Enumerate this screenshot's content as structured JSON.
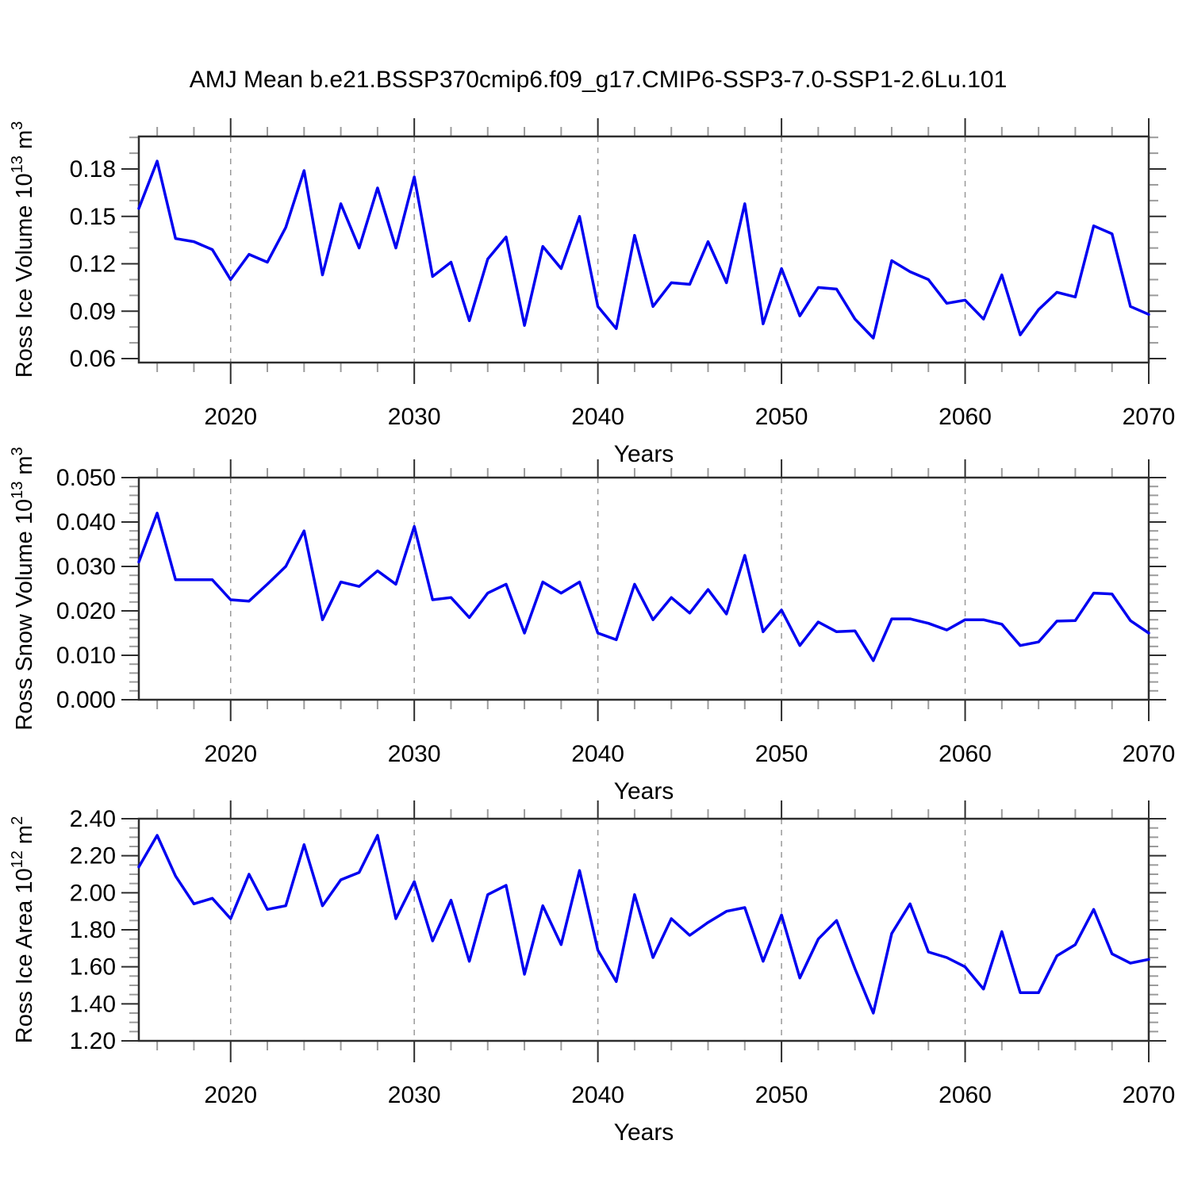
{
  "title": "AMJ Mean b.e21.BSSP370cmip6.f09_g17.CMIP6-SSP3-7.0-SSP1-2.6Lu.101",
  "colors": {
    "line": "#0000f0",
    "frame": "#2e2e2e",
    "minor_tick": "#9b9b9b",
    "gridline": "#999999",
    "text": "#000000"
  },
  "chart_data": {
    "type": "line",
    "suptitle": "AMJ Mean b.e21.BSSP370cmip6.f09_g17.CMIP6-SSP3-7.0-SSP1-2.6Lu.101",
    "legend": "none",
    "grid": "vertical-dashed-at-decades",
    "years": [
      2015,
      2016,
      2017,
      2018,
      2019,
      2020,
      2021,
      2022,
      2023,
      2024,
      2025,
      2026,
      2027,
      2028,
      2029,
      2030,
      2031,
      2032,
      2033,
      2034,
      2035,
      2036,
      2037,
      2038,
      2039,
      2040,
      2041,
      2042,
      2043,
      2044,
      2045,
      2046,
      2047,
      2048,
      2049,
      2050,
      2051,
      2052,
      2053,
      2054,
      2055,
      2056,
      2057,
      2058,
      2059,
      2060,
      2061,
      2062,
      2063,
      2064,
      2065,
      2066,
      2067,
      2068,
      2069,
      2070
    ],
    "x_axis": {
      "label": "Years",
      "xlim": [
        2015,
        2070
      ],
      "major_ticks": [
        2020,
        2030,
        2040,
        2050,
        2060,
        2070
      ],
      "major_tick_labels": [
        "2020",
        "2030",
        "2040",
        "2050",
        "2060",
        "2070"
      ],
      "minor_tick_step": 2,
      "gridlines": [
        2020,
        2030,
        2040,
        2050,
        2060
      ]
    },
    "panels": [
      {
        "name": "ross-ice-volume",
        "ylabel": "Ross Ice Volume 10¹³ m³",
        "ylabel_rich": [
          {
            "t": "Ross Ice Volume 10"
          },
          {
            "t": "13",
            "sup": true
          },
          {
            "t": " m"
          },
          {
            "t": "3",
            "sup": true
          }
        ],
        "xlabel": "Years",
        "ylim_frame": [
          0.0575,
          0.2006
        ],
        "ytick_values": [
          0.06,
          0.09,
          0.12,
          0.15,
          0.18
        ],
        "ytick_labels": [
          "0.06",
          "0.09",
          "0.12",
          "0.15",
          "0.18"
        ],
        "yminor_step": 0.01,
        "values": [
          0.155,
          0.185,
          0.136,
          0.134,
          0.129,
          0.11,
          0.126,
          0.121,
          0.143,
          0.179,
          0.113,
          0.158,
          0.13,
          0.168,
          0.13,
          0.175,
          0.112,
          0.121,
          0.084,
          0.123,
          0.137,
          0.081,
          0.131,
          0.117,
          0.15,
          0.093,
          0.079,
          0.138,
          0.093,
          0.108,
          0.107,
          0.134,
          0.108,
          0.158,
          0.082,
          0.117,
          0.087,
          0.105,
          0.104,
          0.085,
          0.073,
          0.122,
          0.115,
          0.11,
          0.095,
          0.097,
          0.085,
          0.113,
          0.075,
          0.091,
          0.102,
          0.099,
          0.144,
          0.139,
          0.093,
          0.088
        ]
      },
      {
        "name": "ross-snow-volume",
        "ylabel": "Ross Snow Volume 10¹³ m³",
        "ylabel_rich": [
          {
            "t": "Ross Snow Volume 10"
          },
          {
            "t": "13",
            "sup": true
          },
          {
            "t": " m"
          },
          {
            "t": "3",
            "sup": true
          }
        ],
        "xlabel": "Years",
        "ylim_frame": [
          0.0,
          0.05
        ],
        "ytick_values": [
          0.0,
          0.01,
          0.02,
          0.03,
          0.04,
          0.05
        ],
        "ytick_labels": [
          "0.000",
          "0.010",
          "0.020",
          "0.030",
          "0.040",
          "0.050"
        ],
        "yminor_step": 0.002,
        "values": [
          0.031,
          0.042,
          0.027,
          0.027,
          0.027,
          0.0225,
          0.0222,
          0.026,
          0.03,
          0.038,
          0.018,
          0.0265,
          0.0255,
          0.029,
          0.026,
          0.039,
          0.0225,
          0.023,
          0.0185,
          0.024,
          0.026,
          0.015,
          0.0265,
          0.024,
          0.0265,
          0.015,
          0.0135,
          0.026,
          0.018,
          0.023,
          0.0195,
          0.0248,
          0.0193,
          0.0325,
          0.0153,
          0.0202,
          0.0122,
          0.0175,
          0.0153,
          0.0155,
          0.0088,
          0.0182,
          0.0182,
          0.0172,
          0.0157,
          0.018,
          0.018,
          0.017,
          0.0122,
          0.013,
          0.0177,
          0.0178,
          0.024,
          0.0238,
          0.0178,
          0.015
        ]
      },
      {
        "name": "ross-ice-area",
        "ylabel": "Ross Ice Area 10¹² m²",
        "ylabel_rich": [
          {
            "t": "Ross Ice Area 10"
          },
          {
            "t": "12",
            "sup": true
          },
          {
            "t": " m"
          },
          {
            "t": "2",
            "sup": true
          }
        ],
        "xlabel": "Years",
        "ylim_frame": [
          1.2,
          2.4
        ],
        "ytick_values": [
          1.2,
          1.4,
          1.6,
          1.8,
          2.0,
          2.2,
          2.4
        ],
        "ytick_labels": [
          "1.20",
          "1.40",
          "1.60",
          "1.80",
          "2.00",
          "2.20",
          "2.40"
        ],
        "yminor_step": 0.05,
        "values": [
          2.14,
          2.31,
          2.09,
          1.94,
          1.97,
          1.86,
          2.1,
          1.91,
          1.93,
          2.26,
          1.93,
          2.07,
          2.11,
          2.31,
          1.86,
          2.06,
          1.74,
          1.96,
          1.63,
          1.99,
          2.04,
          1.56,
          1.93,
          1.72,
          2.12,
          1.69,
          1.52,
          1.99,
          1.65,
          1.86,
          1.77,
          1.84,
          1.9,
          1.92,
          1.63,
          1.88,
          1.54,
          1.75,
          1.85,
          1.59,
          1.35,
          1.78,
          1.94,
          1.68,
          1.65,
          1.6,
          1.48,
          1.79,
          1.46,
          1.46,
          1.66,
          1.72,
          1.91,
          1.67,
          1.62,
          1.64
        ]
      }
    ]
  }
}
